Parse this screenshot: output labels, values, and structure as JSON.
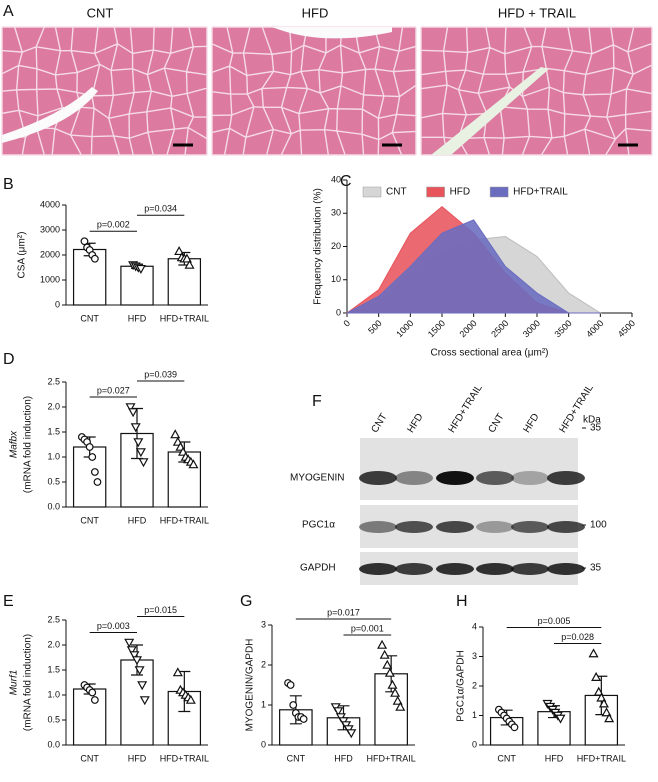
{
  "figure": {
    "images": {
      "panel": "A",
      "titles": [
        "CNT",
        "HFD",
        "HFD + TRAIL"
      ]
    },
    "blot": {
      "panel": "F",
      "lanes": [
        "CNT",
        "HFD",
        "HFD+TRAIL",
        "CNT",
        "HFD",
        "HFD+TRAIL"
      ],
      "unit": "kDa",
      "rows": [
        "MYOGENIN",
        "PGC1α",
        "GAPDH"
      ],
      "markers": [
        35,
        100,
        35
      ]
    }
  },
  "chart_data": [
    {
      "panel": "B",
      "type": "bar",
      "categories": [
        "CNT",
        "HFD",
        "HFD+TRAIL"
      ],
      "values": [
        2220,
        1550,
        1850
      ],
      "errors": [
        250,
        80,
        250
      ],
      "points": [
        [
          2550,
          2300,
          2200,
          2000,
          1850
        ],
        [
          1600,
          1550,
          1500,
          1450
        ],
        [
          2150,
          1900,
          1850,
          1850,
          1600
        ]
      ],
      "markers": [
        "circle",
        "triangle-down",
        "triangle"
      ],
      "y_label": "CSA (μm²)",
      "ylim": [
        0,
        4000
      ],
      "yticks": [
        0,
        1000,
        2000,
        3000,
        4000
      ],
      "comparisons": [
        {
          "from": 0,
          "to": 1,
          "label": "p=0.002"
        },
        {
          "from": 1,
          "to": 2,
          "label": "p=0.034"
        }
      ]
    },
    {
      "panel": "C",
      "type": "area",
      "x": [
        0,
        500,
        1000,
        1500,
        2000,
        2500,
        3000,
        3500,
        4000
      ],
      "series": [
        {
          "name": "CNT",
          "color": "#d6d6d6",
          "values": [
            0,
            3,
            12,
            18,
            22,
            23,
            17,
            6,
            0
          ]
        },
        {
          "name": "HFD",
          "color": "#e8545c",
          "values": [
            0,
            7,
            24,
            32,
            24,
            12,
            3,
            0,
            0
          ]
        },
        {
          "name": "HFD+TRAIL",
          "color": "#6a6cc0",
          "values": [
            0,
            5,
            14,
            24,
            28,
            14,
            6,
            0,
            0
          ]
        }
      ],
      "legend": "top",
      "x_label": "Cross sectional area (μm²)",
      "y_label": "Frequency distribution (%)",
      "xlim": [
        0,
        4500
      ],
      "xticks": [
        0,
        500,
        1000,
        1500,
        2000,
        2500,
        3000,
        3500,
        4000,
        4500
      ],
      "ylim": [
        0,
        40
      ],
      "yticks": [
        0,
        10,
        20,
        30,
        40
      ]
    },
    {
      "panel": "D",
      "type": "bar",
      "categories": [
        "CNT",
        "HFD",
        "HFD+TRAIL"
      ],
      "values": [
        1.2,
        1.47,
        1.1
      ],
      "errors": [
        0.2,
        0.5,
        0.2
      ],
      "points": [
        [
          1.4,
          1.35,
          1.3,
          1.2,
          1.0,
          0.7,
          0.5
        ],
        [
          2.0,
          1.9,
          1.6,
          1.3,
          1.1,
          0.9
        ],
        [
          1.45,
          1.3,
          1.2,
          1.1,
          1.0,
          0.95,
          0.9,
          0.85
        ]
      ],
      "markers": [
        "circle",
        "triangle-down",
        "triangle"
      ],
      "y_label": "Mafbx",
      "y_label_italic": true,
      "y_label2": "(mRNA fold induction)",
      "ylim": [
        0,
        2.5
      ],
      "yticks": [
        {
          "value": 0,
          "label": "0.0"
        },
        0.5,
        {
          "value": 1,
          "label": "1.0"
        },
        1.5,
        {
          "value": 2,
          "label": "2.0"
        },
        2.5
      ],
      "comparisons": [
        {
          "from": 0,
          "to": 1,
          "label": "p=0.027"
        },
        {
          "from": 1,
          "to": 2,
          "label": "p=0.039"
        }
      ]
    },
    {
      "panel": "E",
      "type": "bar",
      "categories": [
        "CNT",
        "HFD",
        "HFD+TRAIL"
      ],
      "values": [
        1.12,
        1.7,
        1.07
      ],
      "errors": [
        0.1,
        0.3,
        0.4
      ],
      "points": [
        [
          1.2,
          1.15,
          1.1,
          1.05,
          0.9
        ],
        [
          2.05,
          1.9,
          1.8,
          1.7,
          1.5,
          1.2,
          0.9
        ],
        [
          1.45,
          1.1,
          1.05,
          1.0,
          0.95,
          0.9
        ]
      ],
      "markers": [
        "circle",
        "triangle-down",
        "triangle"
      ],
      "y_label": "Murf1",
      "y_label_italic": true,
      "y_label2": "(mRNA fold induction)",
      "ylim": [
        0,
        2.5
      ],
      "yticks": [
        {
          "value": 0,
          "label": "0.0"
        },
        0.5,
        {
          "value": 1,
          "label": "1.0"
        },
        1.5,
        {
          "value": 2,
          "label": "2.0"
        },
        2.5
      ],
      "comparisons": [
        {
          "from": 0,
          "to": 1,
          "label": "p=0.003"
        },
        {
          "from": 1,
          "to": 2,
          "label": "p=0.015"
        }
      ]
    },
    {
      "panel": "G",
      "type": "bar",
      "categories": [
        "CNT",
        "HFD",
        "HFD+TRAIL"
      ],
      "values": [
        0.88,
        0.68,
        1.78
      ],
      "errors": [
        0.35,
        0.3,
        0.45
      ],
      "points": [
        [
          1.55,
          1.5,
          1.0,
          0.8,
          0.7,
          0.7,
          0.65
        ],
        [
          0.95,
          0.85,
          0.7,
          0.6,
          0.5,
          0.4,
          0.3
        ],
        [
          2.5,
          2.25,
          2.0,
          1.8,
          1.5,
          1.3,
          1.1,
          0.95
        ]
      ],
      "markers": [
        "circle",
        "triangle-down",
        "triangle"
      ],
      "y_label": "MYOGENIN/GAPDH",
      "ylim": [
        0,
        3
      ],
      "yticks": [
        0,
        1,
        2,
        3
      ],
      "comparisons": [
        {
          "from": 1,
          "to": 2,
          "label": "p=0.001"
        },
        {
          "from": 0,
          "to": 2,
          "label": "p=0.017"
        }
      ]
    },
    {
      "panel": "H",
      "type": "bar",
      "categories": [
        "CNT",
        "HFD",
        "HFD+TRAIL"
      ],
      "values": [
        0.93,
        1.13,
        1.68
      ],
      "errors": [
        0.25,
        0.2,
        0.65
      ],
      "points": [
        [
          1.2,
          1.1,
          1.0,
          0.9,
          0.8,
          0.7,
          0.6
        ],
        [
          1.4,
          1.3,
          1.2,
          1.1,
          1.0,
          0.9
        ],
        [
          3.1,
          2.3,
          1.8,
          1.6,
          1.4,
          1.1,
          0.9
        ]
      ],
      "markers": [
        "circle",
        "triangle-down",
        "triangle"
      ],
      "y_label": "PGC1α/GAPDH",
      "ylim": [
        0,
        4
      ],
      "yticks": [
        0,
        1,
        2,
        3,
        4
      ],
      "comparisons": [
        {
          "from": 1,
          "to": 2,
          "label": "p=0.028"
        },
        {
          "from": 0,
          "to": 2,
          "label": "p=0.005"
        }
      ]
    }
  ]
}
